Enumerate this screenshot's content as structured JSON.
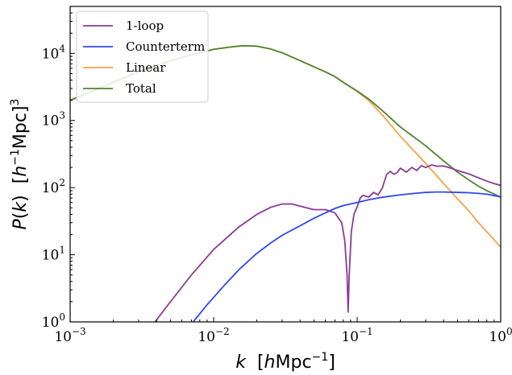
{
  "chart_data": {
    "type": "line",
    "title": "",
    "xlabel": "k  [hMpc⁻¹]",
    "ylabel": "P(k)  [h⁻¹Mpc]³",
    "xscale": "log",
    "yscale": "log",
    "xlim": [
      0.001,
      1
    ],
    "ylim": [
      1,
      50000
    ],
    "grid": false,
    "legend_position": "top-left",
    "x_ticks": [
      {
        "value": 0.001,
        "base": "10",
        "exp": "−3"
      },
      {
        "value": 0.01,
        "base": "10",
        "exp": "−2"
      },
      {
        "value": 0.1,
        "base": "10",
        "exp": "−1"
      },
      {
        "value": 1,
        "base": "10",
        "exp": "0"
      }
    ],
    "y_ticks": [
      {
        "value": 1,
        "base": "10",
        "exp": "0"
      },
      {
        "value": 10,
        "base": "10",
        "exp": "1"
      },
      {
        "value": 100,
        "base": "10",
        "exp": "2"
      },
      {
        "value": 1000,
        "base": "10",
        "exp": "3"
      },
      {
        "value": 10000,
        "base": "10",
        "exp": "4"
      }
    ],
    "series": [
      {
        "name": "1-loop",
        "color": "#8b3a96",
        "x": [
          0.0039,
          0.005,
          0.007,
          0.01,
          0.015,
          0.02,
          0.025,
          0.03,
          0.035,
          0.04,
          0.05,
          0.06,
          0.07,
          0.078,
          0.082,
          0.085,
          0.0865,
          0.088,
          0.091,
          0.095,
          0.1,
          0.105,
          0.11,
          0.12,
          0.13,
          0.14,
          0.15,
          0.16,
          0.17,
          0.18,
          0.19,
          0.2,
          0.22,
          0.24,
          0.26,
          0.28,
          0.3,
          0.33,
          0.36,
          0.4,
          0.45,
          0.5,
          0.6,
          0.7,
          0.8,
          0.9,
          1.0
        ],
        "y": [
          1.0,
          2.0,
          5.0,
          12.0,
          26.0,
          40.0,
          51.0,
          57.0,
          57.0,
          53.0,
          47.0,
          47.0,
          42.0,
          30.0,
          16.0,
          5.0,
          1.4,
          5.0,
          22.0,
          40.0,
          52.0,
          70.0,
          77.0,
          72.0,
          85.0,
          78.0,
          100.0,
          155.0,
          175.0,
          158.0,
          168.0,
          195.0,
          170.0,
          200.0,
          180.0,
          212.0,
          200.0,
          218.0,
          208.0,
          210.0,
          195.0,
          180.0,
          160.0,
          140.0,
          125.0,
          115.0,
          108.0
        ]
      },
      {
        "name": "Counterterm",
        "color": "#2f47f2",
        "x": [
          0.0072,
          0.009,
          0.012,
          0.015,
          0.02,
          0.025,
          0.03,
          0.04,
          0.05,
          0.06,
          0.07,
          0.08,
          0.1,
          0.12,
          0.15,
          0.2,
          0.25,
          0.3,
          0.35,
          0.4,
          0.5,
          0.6,
          0.7,
          0.8,
          0.9,
          1.0
        ],
        "y": [
          1.0,
          1.8,
          3.6,
          6.0,
          10.5,
          15.0,
          19.5,
          27.0,
          35.0,
          42.0,
          49.0,
          54.0,
          60.0,
          66.0,
          72.0,
          78.0,
          82.0,
          85.0,
          86.0,
          86.0,
          85.0,
          84.0,
          82.0,
          80.0,
          76.0,
          73.0
        ]
      },
      {
        "name": "Linear",
        "color": "#f5a347",
        "x": [
          0.001,
          0.002,
          0.003,
          0.005,
          0.007,
          0.01,
          0.013,
          0.016,
          0.02,
          0.025,
          0.03,
          0.04,
          0.05,
          0.06,
          0.07,
          0.08,
          0.1,
          0.12,
          0.15,
          0.2,
          0.3,
          0.4,
          0.5,
          0.6,
          0.7,
          0.8,
          1.0
        ],
        "y": [
          2000,
          3700,
          5300,
          7800,
          9500,
          11500,
          12400,
          13000,
          12800,
          11600,
          10200,
          7800,
          6300,
          5300,
          4500,
          3700,
          2700,
          2000,
          1200,
          580,
          230,
          115,
          68,
          45,
          30,
          22,
          13
        ]
      },
      {
        "name": "Total",
        "color": "#4e8531",
        "x": [
          0.001,
          0.002,
          0.003,
          0.005,
          0.007,
          0.01,
          0.013,
          0.016,
          0.02,
          0.025,
          0.03,
          0.04,
          0.05,
          0.06,
          0.07,
          0.08,
          0.1,
          0.12,
          0.15,
          0.2,
          0.3,
          0.4,
          0.5,
          0.6,
          0.7,
          0.8,
          0.9,
          1.0
        ],
        "y": [
          2000,
          3700,
          5300,
          7800,
          9500,
          11500,
          12400,
          13000,
          12800,
          11600,
          10200,
          7800,
          6300,
          5300,
          4500,
          3700,
          2750,
          2100,
          1400,
          800,
          420,
          250,
          170,
          130,
          105,
          90,
          80,
          72
        ]
      }
    ]
  }
}
